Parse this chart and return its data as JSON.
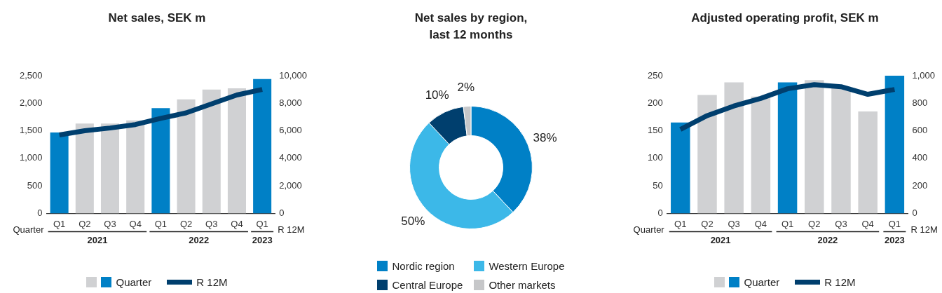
{
  "chart_data": [
    {
      "type": "bar",
      "title": "Net sales, SEK m",
      "ylabel": "Quarter",
      "y2label": "R 12M",
      "categories": [
        "Q1",
        "Q2",
        "Q3",
        "Q4",
        "Q1",
        "Q2",
        "Q3",
        "Q4",
        "Q1"
      ],
      "series": [
        {
          "name": "Quarter",
          "type": "bar",
          "colors": [
            "#0080c6",
            "#d0d1d3",
            "#d0d1d3",
            "#d0d1d3",
            "#0080c6",
            "#d0d1d3",
            "#d0d1d3",
            "#d0d1d3",
            "#0080c6"
          ],
          "values": [
            1470,
            1630,
            1630,
            1690,
            1910,
            2070,
            2250,
            2270,
            2440
          ]
        },
        {
          "name": "R 12M",
          "type": "line",
          "axis": "y2",
          "color": "#003f6e",
          "values": [
            5700,
            6000,
            6200,
            6450,
            6900,
            7300,
            7950,
            8600,
            9000
          ]
        }
      ],
      "ylim": [
        0,
        2500
      ],
      "yticks": [
        0,
        500,
        {
          "value": 1000,
          "label": "1,000"
        },
        {
          "value": 1500,
          "label": "1,500"
        },
        {
          "value": 2000,
          "label": "2,000"
        },
        {
          "value": 2500,
          "label": "2,500"
        }
      ],
      "y2lim": [
        0,
        10000
      ],
      "y2ticks": [
        0,
        {
          "value": 2000,
          "label": "2,000"
        },
        {
          "value": 4000,
          "label": "4,000"
        },
        {
          "value": 6000,
          "label": "6,000"
        },
        {
          "value": 8000,
          "label": "8,000"
        },
        {
          "value": 10000,
          "label": "10,000"
        }
      ],
      "annotations": [
        "2021",
        "2022",
        "2023"
      ],
      "legend": "bottom",
      "grid": false
    },
    {
      "type": "donut",
      "title": "Net sales by region, last 12 months",
      "categories": [
        "Nordic region",
        "Western Europe",
        "Central Europe",
        "Other markets"
      ],
      "values": [
        38,
        50,
        10,
        2
      ],
      "colors": [
        "#0080c6",
        "#3cb8e8",
        "#003f6e",
        "#c6c7c9"
      ],
      "value_labels": [
        "38%",
        "50%",
        "10%",
        "2%"
      ],
      "legend": "bottom"
    },
    {
      "type": "bar",
      "title": "Adjusted operating profit, SEK m",
      "ylabel": "Quarter",
      "y2label": "R 12M",
      "categories": [
        "Q1",
        "Q2",
        "Q3",
        "Q4",
        "Q1",
        "Q2",
        "Q3",
        "Q4",
        "Q1"
      ],
      "series": [
        {
          "name": "Quarter",
          "type": "bar",
          "colors": [
            "#0080c6",
            "#d0d1d3",
            "#d0d1d3",
            "#d0d1d3",
            "#0080c6",
            "#d0d1d3",
            "#d0d1d3",
            "#d0d1d3",
            "#0080c6"
          ],
          "values": [
            165,
            215,
            238,
            212,
            238,
            242,
            230,
            185,
            250
          ]
        },
        {
          "name": "R 12M",
          "type": "line",
          "axis": "y2",
          "color": "#003f6e",
          "values": [
            610,
            710,
            780,
            835,
            905,
            935,
            920,
            865,
            900
          ]
        }
      ],
      "ylim": [
        0,
        250
      ],
      "yticks": [
        0,
        50,
        100,
        150,
        200,
        250
      ],
      "y2lim": [
        0,
        1000
      ],
      "y2ticks": [
        0,
        200,
        400,
        600,
        800,
        {
          "value": 1000,
          "label": "1,000"
        }
      ],
      "annotations": [
        "2021",
        "2022",
        "2023"
      ],
      "legend": "bottom",
      "grid": false
    }
  ]
}
